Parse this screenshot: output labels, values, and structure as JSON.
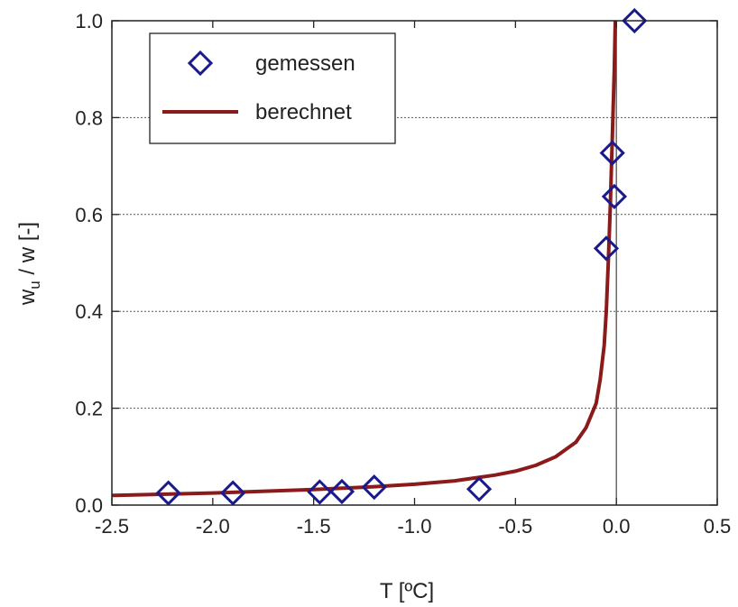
{
  "chart_data": {
    "type": "scatter",
    "xlabel": "T [ºC]",
    "ylabel_main": "w",
    "ylabel_sub": "u",
    "ylabel_rest": " / w [-]",
    "xlim": [
      -2.5,
      0.5
    ],
    "ylim": [
      0.0,
      1.0
    ],
    "x_ticks": [
      -2.5,
      -2.0,
      -1.5,
      -1.0,
      -0.5,
      0.0,
      0.5
    ],
    "x_tick_labels": [
      "-2.5",
      "-2.0",
      "-1.5",
      "-1.0",
      "-0.5",
      "0.0",
      "0.5"
    ],
    "y_ticks": [
      0.0,
      0.2,
      0.4,
      0.6,
      0.8,
      1.0
    ],
    "y_tick_labels": [
      "0.0",
      "0.2",
      "0.4",
      "0.6",
      "0.8",
      "1.0"
    ],
    "grid": "horizontal dotted",
    "legend_position": "top-left",
    "series": [
      {
        "name": "gemessen",
        "kind": "markers",
        "marker": "diamond",
        "color": "#1a1a8c",
        "points": [
          {
            "x": -2.22,
            "y": 0.025
          },
          {
            "x": -1.9,
            "y": 0.025
          },
          {
            "x": -1.47,
            "y": 0.027
          },
          {
            "x": -1.36,
            "y": 0.028
          },
          {
            "x": -1.2,
            "y": 0.037
          },
          {
            "x": -0.68,
            "y": 0.033
          },
          {
            "x": -0.05,
            "y": 0.53
          },
          {
            "x": -0.02,
            "y": 0.727
          },
          {
            "x": -0.01,
            "y": 0.637
          },
          {
            "x": 0.09,
            "y": 1.0
          }
        ]
      },
      {
        "name": "berechnet",
        "kind": "line",
        "color": "#8b1a1a",
        "points": [
          {
            "x": -2.5,
            "y": 0.02
          },
          {
            "x": -2.0,
            "y": 0.025
          },
          {
            "x": -1.5,
            "y": 0.032
          },
          {
            "x": -1.2,
            "y": 0.038
          },
          {
            "x": -1.0,
            "y": 0.043
          },
          {
            "x": -0.8,
            "y": 0.05
          },
          {
            "x": -0.6,
            "y": 0.062
          },
          {
            "x": -0.5,
            "y": 0.07
          },
          {
            "x": -0.4,
            "y": 0.082
          },
          {
            "x": -0.3,
            "y": 0.1
          },
          {
            "x": -0.2,
            "y": 0.13
          },
          {
            "x": -0.15,
            "y": 0.16
          },
          {
            "x": -0.1,
            "y": 0.21
          },
          {
            "x": -0.08,
            "y": 0.26
          },
          {
            "x": -0.06,
            "y": 0.33
          },
          {
            "x": -0.05,
            "y": 0.4
          },
          {
            "x": -0.04,
            "y": 0.5
          },
          {
            "x": -0.03,
            "y": 0.62
          },
          {
            "x": -0.02,
            "y": 0.76
          },
          {
            "x": -0.01,
            "y": 0.9
          },
          {
            "x": -0.005,
            "y": 1.0
          }
        ]
      }
    ]
  }
}
